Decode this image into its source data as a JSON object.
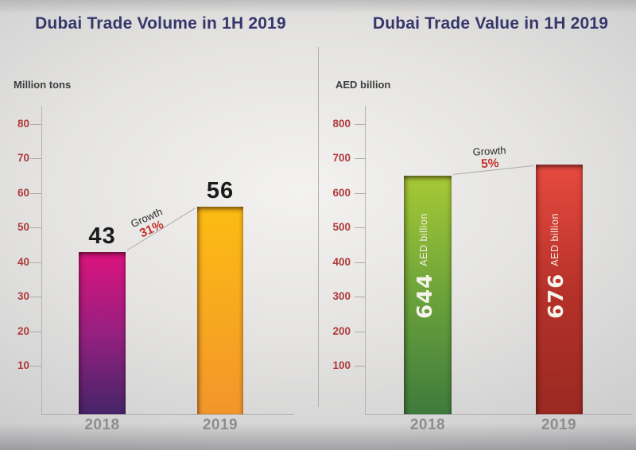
{
  "style": {
    "background_center": "#F3F2F0",
    "background_edge": "#C6C6C8",
    "title_color": "#36366B",
    "axis_tick_label_color": "#AD3B3B",
    "category_label_color": "#8E8D8D",
    "growth_pct_color": "#C2332D",
    "line_color": "#ABABAB",
    "in_bar_text_color": "#F6F3EA"
  },
  "chart_data": [
    {
      "type": "bar",
      "title": "Dubai Trade Volume in 1H 2019",
      "ylabel": "Million tons",
      "xlabel": "",
      "categories": [
        "2018",
        "2019"
      ],
      "values": [
        43,
        56
      ],
      "bar_value_labels": [
        "43",
        "56"
      ],
      "value_label_position": "above",
      "yticks": [
        10,
        20,
        30,
        40,
        50,
        60,
        70,
        80
      ],
      "ylim": [
        0,
        80
      ],
      "grid": false,
      "legend": false,
      "annotation": {
        "label": "Growth",
        "pct": "31%"
      },
      "bar_gradients": [
        [
          "#DC137E",
          "#93207F",
          "#452468"
        ],
        [
          "#FCBC13",
          "#F3952B"
        ]
      ]
    },
    {
      "type": "bar",
      "title": "Dubai Trade Value in 1H 2019",
      "ylabel": "AED billion",
      "xlabel": "",
      "categories": [
        "2018",
        "2019"
      ],
      "values": [
        644,
        676
      ],
      "bar_value_labels": [
        "644",
        "676"
      ],
      "in_bar_unit": "AED billion",
      "value_label_position": "inside",
      "yticks": [
        100,
        200,
        300,
        400,
        500,
        600,
        700,
        800
      ],
      "ylim": [
        0,
        800
      ],
      "grid": false,
      "legend": false,
      "annotation": {
        "label": "Growth",
        "pct": "5%"
      },
      "bar_gradients": [
        [
          "#A7CA35",
          "#69A13A",
          "#3F7B3D"
        ],
        [
          "#E74A3F",
          "#B53129",
          "#992A22"
        ]
      ]
    }
  ]
}
